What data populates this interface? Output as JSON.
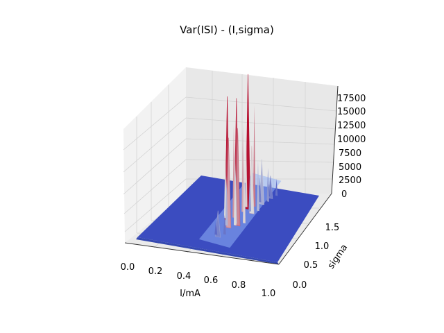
{
  "chart_data": {
    "type": "surface3d",
    "title": "Var(ISI) - (I,sigma)",
    "xlabel": "I/mA",
    "ylabel": "sigma",
    "zlabel": "",
    "xlim": [
      0,
      1
    ],
    "ylim": [
      0,
      2
    ],
    "zlim": [
      0,
      18500
    ],
    "x_ticks": [
      "0.0",
      "0.2",
      "0.4",
      "0.6",
      "0.8",
      "1.0"
    ],
    "y_ticks": [
      "0.0",
      "0.5",
      "1.0",
      "1.5"
    ],
    "z_ticks": [
      "0",
      "2500",
      "5000",
      "7500",
      "10000",
      "12500",
      "15000",
      "17500"
    ],
    "colormap": "coolwarm",
    "colors": {
      "low": "#3b4cc0",
      "mid": "#dddddd",
      "high": "#b40426",
      "pane": "#f2f2f2",
      "grid": "#d0d0d0"
    },
    "grid": true,
    "description_of_data": "Variance of interspike intervals is near zero across most of the domain, with large spikes concentrated around I ≈ 0.45–0.6 and low-to-moderate sigma.",
    "peaks": [
      {
        "x": 0.47,
        "y": 0.9,
        "z": 16500
      },
      {
        "x": 0.5,
        "y": 1.1,
        "z": 15500
      },
      {
        "x": 0.52,
        "y": 0.7,
        "z": 12000
      },
      {
        "x": 0.55,
        "y": 1.3,
        "z": 18000
      },
      {
        "x": 0.57,
        "y": 0.8,
        "z": 13000
      },
      {
        "x": 0.6,
        "y": 1.2,
        "z": 9000
      },
      {
        "x": 0.62,
        "y": 1.5,
        "z": 6000
      },
      {
        "x": 0.5,
        "y": 0.4,
        "z": 3500
      },
      {
        "x": 0.65,
        "y": 1.7,
        "z": 3000
      }
    ]
  }
}
